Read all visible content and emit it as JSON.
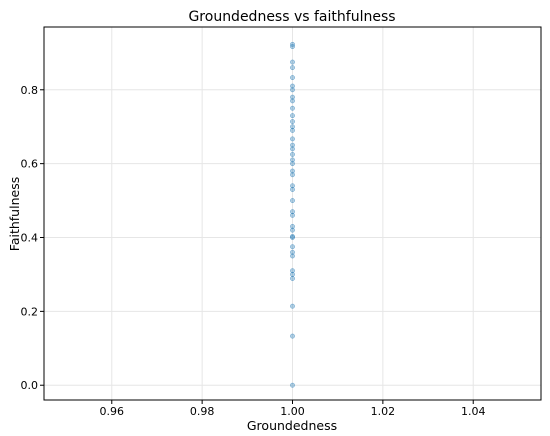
{
  "chart_data": {
    "type": "scatter",
    "title": "Groundedness vs faithfulness",
    "xlabel": "Groundedness",
    "ylabel": "Faithfulness",
    "xlim": [
      0.945,
      1.055
    ],
    "ylim": [
      -0.04,
      0.97
    ],
    "x_ticks": [
      0.96,
      0.98,
      1.0,
      1.02,
      1.04
    ],
    "x_tick_labels": [
      "0.96",
      "0.98",
      "1.00",
      "1.02",
      "1.04"
    ],
    "y_ticks": [
      0.0,
      0.2,
      0.4,
      0.6,
      0.8
    ],
    "y_tick_labels": [
      "0.0",
      "0.2",
      "0.4",
      "0.6",
      "0.8"
    ],
    "grid": true,
    "point_color": "#1f77b4",
    "point_alpha": 0.35,
    "points": [
      {
        "x": 1.0,
        "y": 0.0
      },
      {
        "x": 1.0,
        "y": 0.133
      },
      {
        "x": 1.0,
        "y": 0.214
      },
      {
        "x": 1.0,
        "y": 0.289
      },
      {
        "x": 1.0,
        "y": 0.3
      },
      {
        "x": 1.0,
        "y": 0.31
      },
      {
        "x": 1.0,
        "y": 0.35
      },
      {
        "x": 1.0,
        "y": 0.36
      },
      {
        "x": 1.0,
        "y": 0.375
      },
      {
        "x": 1.0,
        "y": 0.4
      },
      {
        "x": 1.0,
        "y": 0.403
      },
      {
        "x": 1.0,
        "y": 0.42
      },
      {
        "x": 1.0,
        "y": 0.43
      },
      {
        "x": 1.0,
        "y": 0.46
      },
      {
        "x": 1.0,
        "y": 0.47
      },
      {
        "x": 1.0,
        "y": 0.5
      },
      {
        "x": 1.0,
        "y": 0.53
      },
      {
        "x": 1.0,
        "y": 0.54
      },
      {
        "x": 1.0,
        "y": 0.57
      },
      {
        "x": 1.0,
        "y": 0.58
      },
      {
        "x": 1.0,
        "y": 0.6
      },
      {
        "x": 1.0,
        "y": 0.61
      },
      {
        "x": 1.0,
        "y": 0.625
      },
      {
        "x": 1.0,
        "y": 0.64
      },
      {
        "x": 1.0,
        "y": 0.65
      },
      {
        "x": 1.0,
        "y": 0.667
      },
      {
        "x": 1.0,
        "y": 0.69
      },
      {
        "x": 1.0,
        "y": 0.7
      },
      {
        "x": 1.0,
        "y": 0.714
      },
      {
        "x": 1.0,
        "y": 0.73
      },
      {
        "x": 1.0,
        "y": 0.75
      },
      {
        "x": 1.0,
        "y": 0.77
      },
      {
        "x": 1.0,
        "y": 0.78
      },
      {
        "x": 1.0,
        "y": 0.8
      },
      {
        "x": 1.0,
        "y": 0.81
      },
      {
        "x": 1.0,
        "y": 0.833
      },
      {
        "x": 1.0,
        "y": 0.86
      },
      {
        "x": 1.0,
        "y": 0.875
      },
      {
        "x": 1.0,
        "y": 0.917
      },
      {
        "x": 1.0,
        "y": 0.923
      }
    ]
  }
}
